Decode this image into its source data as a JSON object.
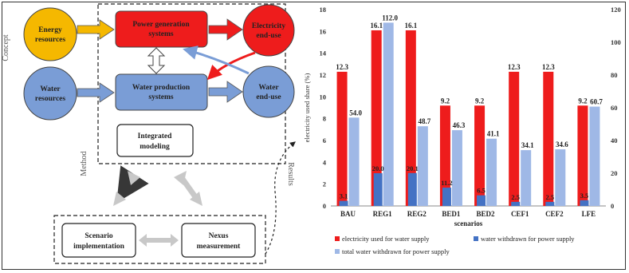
{
  "diagram": {
    "side_labels": {
      "concept": "Concept",
      "method": "Method",
      "results": "Results"
    },
    "nodes": {
      "energy": "Energy resources",
      "power": "Power generation systems",
      "electricity_end": "Electricity end-use",
      "water": "Water resources",
      "water_prod": "Water production systems",
      "water_end": "Water end-use",
      "integrated": "Integrated modeling",
      "scenario": "Scenario implementation",
      "nexus": "Nexus measurement"
    },
    "colors": {
      "yellow": "#f5b800",
      "red": "#ee1c1c",
      "blue": "#7a9dd6"
    }
  },
  "chart_data": {
    "type": "bar",
    "categories": [
      "BAU",
      "REG1",
      "REG2",
      "BED1",
      "BED2",
      "CEF1",
      "CEF2",
      "LFE"
    ],
    "xlabel": "scenarios",
    "ylabel": "electricity used share (%)",
    "ylim": [
      0,
      18
    ],
    "y2lim": [
      0,
      120
    ],
    "y_ticks": [
      "0",
      "2",
      "4",
      "6",
      "8",
      "10",
      "12",
      "14",
      "16",
      "18"
    ],
    "y2_ticks": [
      "0",
      "20",
      "40",
      "60",
      "80",
      "100",
      "120"
    ],
    "series": [
      {
        "name": "electricity used for water supply",
        "axis": "left",
        "color": "#ee1c1c",
        "values": [
          12.3,
          16.1,
          16.1,
          9.2,
          9.2,
          12.3,
          12.3,
          9.2
        ],
        "labels": [
          "12.3",
          "16.1",
          "16.1",
          "9.2",
          "9.2",
          "12.3",
          "12.3",
          "9.2"
        ]
      },
      {
        "name": "water withdrawn for power supply",
        "axis": "right",
        "color": "#4472c4",
        "values": [
          3.1,
          20.0,
          20.1,
          11.2,
          6.5,
          2.5,
          2.5,
          3.5
        ],
        "labels": [
          "3.1",
          "20.0",
          "20.1",
          "11.2",
          "6.5",
          "2.5",
          "2.5",
          "3.5"
        ]
      },
      {
        "name": "total water withdrawn for power supply",
        "axis": "right",
        "color": "#9fb8e6",
        "values": [
          54.0,
          112.0,
          48.7,
          46.3,
          41.1,
          34.1,
          34.6,
          60.7
        ],
        "labels": [
          "54.0",
          "112.0",
          "48.7",
          "46.3",
          "41.1",
          "34.1",
          "34.6",
          "60.7"
        ]
      }
    ],
    "legend_position": "bottom"
  }
}
